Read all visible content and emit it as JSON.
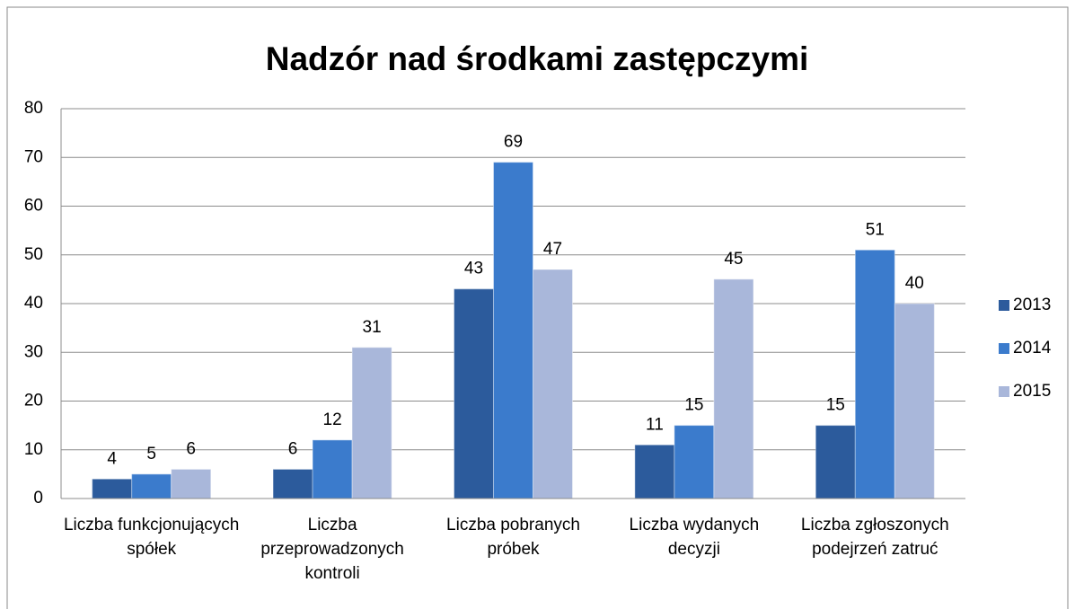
{
  "chart_data": {
    "type": "bar",
    "title": "Nadzór nad środkami zastępczymi",
    "categories": [
      "Liczba funkcjonujących spółek",
      "Liczba przeprowadzonych kontroli",
      "Liczba pobranych próbek",
      "Liczba wydanych decyzji",
      "Liczba zgłoszonych podejrzeń zatruć"
    ],
    "series": [
      {
        "name": "2013",
        "color": "#2c5b9c",
        "values": [
          4,
          6,
          43,
          11,
          15
        ]
      },
      {
        "name": "2014",
        "color": "#3b7bcc",
        "values": [
          5,
          12,
          69,
          15,
          51
        ]
      },
      {
        "name": "2015",
        "color": "#a9b7da",
        "values": [
          6,
          31,
          47,
          45,
          40
        ]
      }
    ],
    "ylim": [
      0,
      80
    ],
    "yticks": [
      0,
      10,
      20,
      30,
      40,
      50,
      60,
      70,
      80
    ],
    "grid": true,
    "legend": "right"
  }
}
